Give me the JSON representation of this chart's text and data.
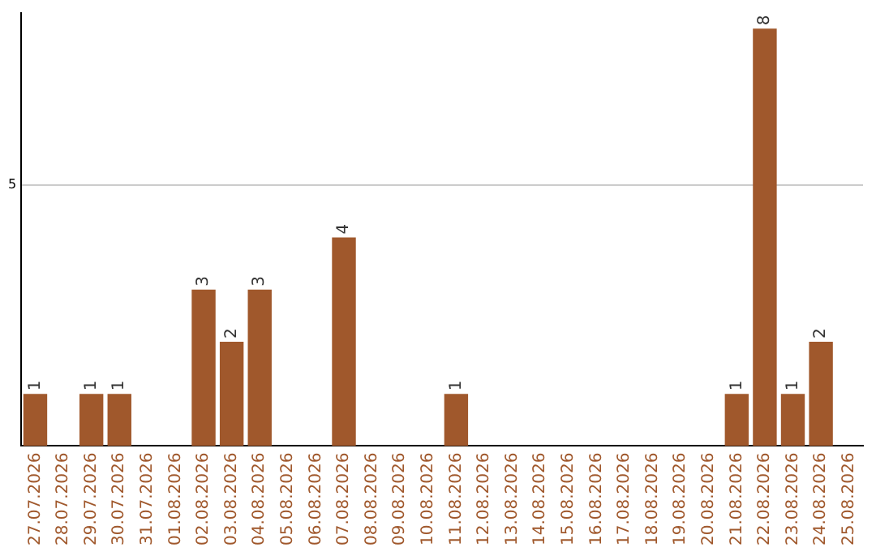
{
  "chart_data": {
    "type": "bar",
    "categories": [
      "27.07.2026",
      "28.07.2026",
      "29.07.2026",
      "30.07.2026",
      "31.07.2026",
      "01.08.2026",
      "02.08.2026",
      "03.08.2026",
      "04.08.2026",
      "05.08.2026",
      "06.08.2026",
      "07.08.2026",
      "08.08.2026",
      "09.08.2026",
      "10.08.2026",
      "11.08.2026",
      "12.08.2026",
      "13.08.2026",
      "14.08.2026",
      "15.08.2026",
      "16.08.2026",
      "17.08.2026",
      "18.08.2026",
      "19.08.2026",
      "20.08.2026",
      "21.08.2026",
      "22.08.2026",
      "23.08.2026",
      "24.08.2026",
      "25.08.2026"
    ],
    "values": [
      1,
      0,
      1,
      1,
      0,
      0,
      3,
      2,
      3,
      0,
      0,
      4,
      0,
      0,
      0,
      1,
      0,
      0,
      0,
      0,
      0,
      0,
      0,
      0,
      0,
      1,
      8,
      1,
      2,
      0
    ],
    "value_labels": [
      "1",
      null,
      "1",
      "1",
      null,
      null,
      "3",
      "2",
      "3",
      null,
      null,
      "4",
      null,
      null,
      null,
      "1",
      null,
      null,
      null,
      null,
      null,
      null,
      null,
      null,
      null,
      "1",
      "8",
      "1",
      "2",
      null
    ],
    "color": "#a0582c",
    "ylim": [
      0,
      8.3
    ],
    "yticks": [
      5
    ],
    "grid": "y",
    "legend": false
  }
}
